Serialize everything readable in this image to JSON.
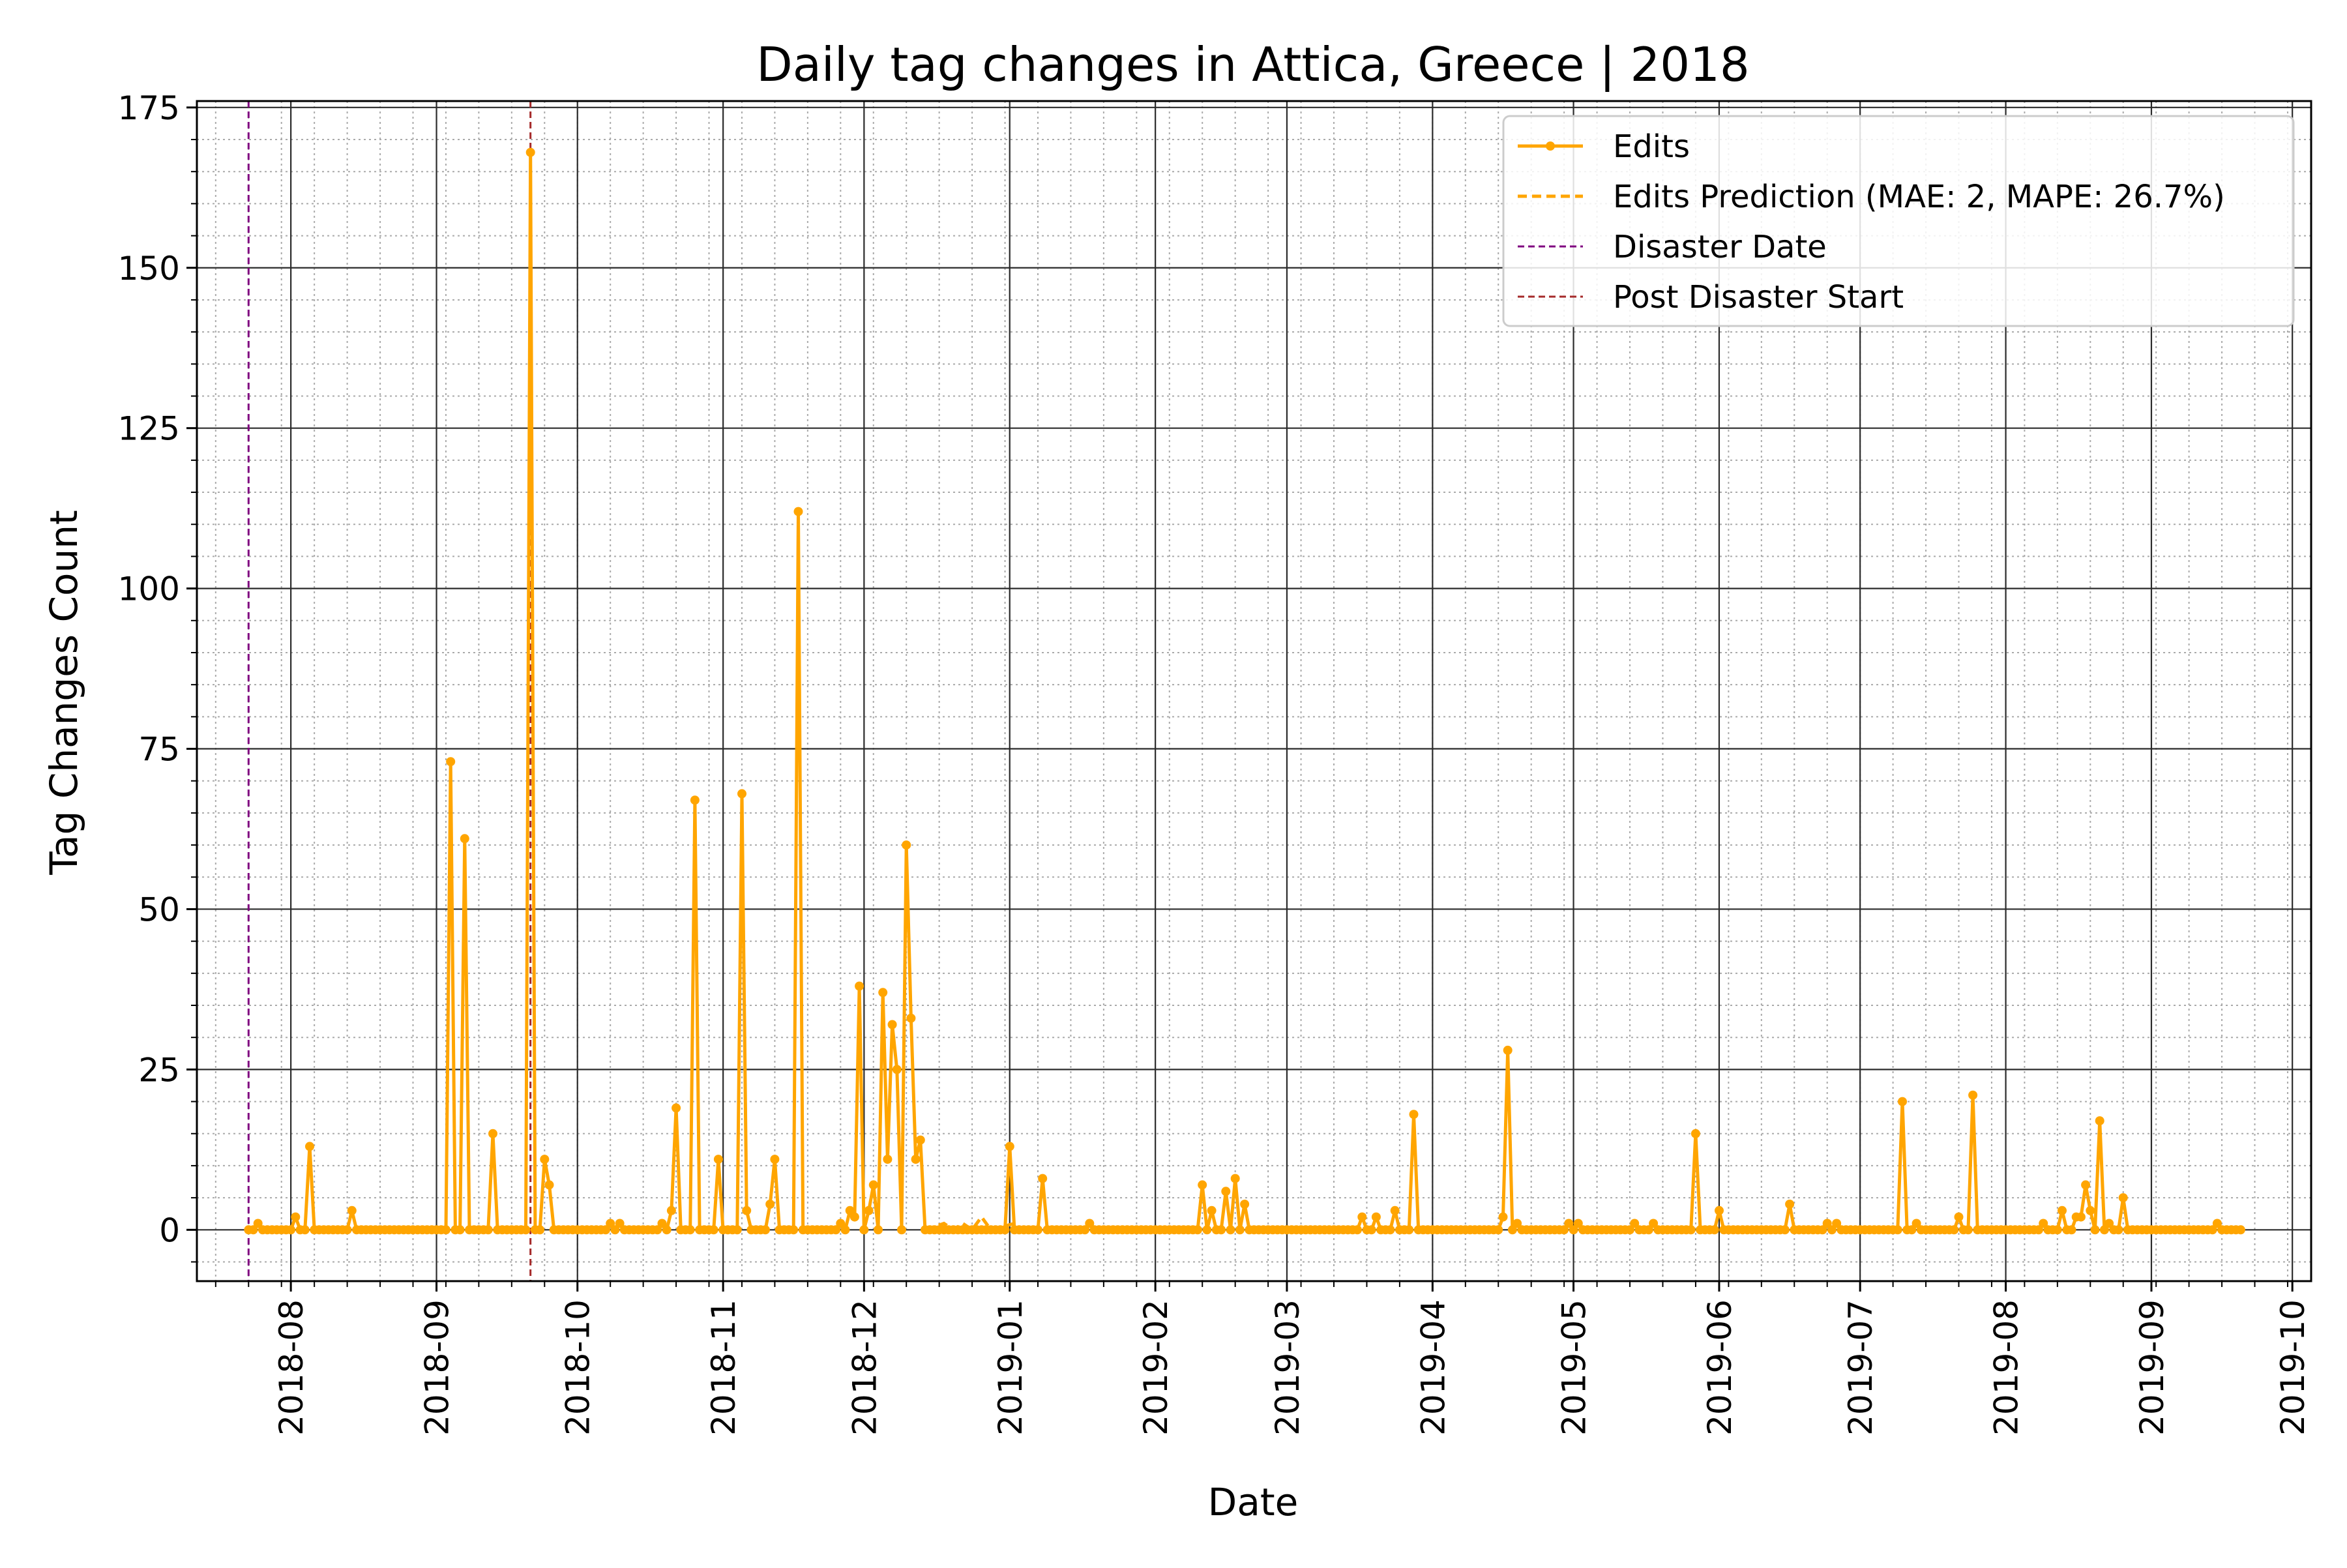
{
  "chart_data": {
    "type": "line",
    "title": "Daily tag changes in Attica, Greece | 2018",
    "xlabel": "Date",
    "ylabel": "Tag Changes Count",
    "xlim": [
      "2018-07-12",
      "2019-10-05"
    ],
    "ylim": [
      -8,
      176
    ],
    "x_ticks": [
      "2018-08",
      "2018-09",
      "2018-10",
      "2018-11",
      "2018-12",
      "2019-01",
      "2019-02",
      "2019-03",
      "2019-04",
      "2019-05",
      "2019-06",
      "2019-07",
      "2019-08",
      "2019-09",
      "2019-10"
    ],
    "y_ticks": [
      "0",
      "25",
      "50",
      "75",
      "100",
      "125",
      "150",
      "175"
    ],
    "y_tick_values": [
      0,
      25,
      50,
      75,
      100,
      125,
      150,
      175
    ],
    "grid": {
      "major": true,
      "minor": true
    },
    "legend_position": "top-right",
    "series": [
      {
        "name": "Edits",
        "color": "#FFA500",
        "marker": "circle",
        "start": "2018-07-23",
        "end": "2019-09-20",
        "baseline": 0,
        "points": [
          [
            "2018-07-23",
            0
          ],
          [
            "2018-07-25",
            1
          ],
          [
            "2018-08-02",
            2
          ],
          [
            "2018-08-05",
            13
          ],
          [
            "2018-08-14",
            3
          ],
          [
            "2018-09-04",
            73
          ],
          [
            "2018-09-07",
            61
          ],
          [
            "2018-09-13",
            15
          ],
          [
            "2018-09-21",
            168
          ],
          [
            "2018-09-24",
            11
          ],
          [
            "2018-09-25",
            7
          ],
          [
            "2018-10-08",
            1
          ],
          [
            "2018-10-10",
            1
          ],
          [
            "2018-10-19",
            1
          ],
          [
            "2018-10-21",
            3
          ],
          [
            "2018-10-22",
            19
          ],
          [
            "2018-10-26",
            67
          ],
          [
            "2018-10-31",
            11
          ],
          [
            "2018-11-05",
            68
          ],
          [
            "2018-11-06",
            3
          ],
          [
            "2018-11-11",
            4
          ],
          [
            "2018-11-12",
            11
          ],
          [
            "2018-11-17",
            112
          ],
          [
            "2018-11-26",
            1
          ],
          [
            "2018-11-28",
            3
          ],
          [
            "2018-11-29",
            2
          ],
          [
            "2018-11-30",
            38
          ],
          [
            "2018-12-02",
            3
          ],
          [
            "2018-12-03",
            7
          ],
          [
            "2018-12-05",
            37
          ],
          [
            "2018-12-06",
            11
          ],
          [
            "2018-12-07",
            32
          ],
          [
            "2018-12-08",
            25
          ],
          [
            "2018-12-10",
            60
          ],
          [
            "2018-12-11",
            33
          ],
          [
            "2018-12-12",
            11
          ],
          [
            "2018-12-13",
            14
          ],
          [
            "2019-01-01",
            13
          ],
          [
            "2019-01-08",
            8
          ],
          [
            "2019-01-18",
            1
          ],
          [
            "2019-02-11",
            7
          ],
          [
            "2019-02-13",
            3
          ],
          [
            "2019-02-16",
            6
          ],
          [
            "2019-02-18",
            8
          ],
          [
            "2019-02-20",
            4
          ],
          [
            "2019-03-17",
            2
          ],
          [
            "2019-03-20",
            2
          ],
          [
            "2019-03-24",
            3
          ],
          [
            "2019-03-28",
            18
          ],
          [
            "2019-04-16",
            2
          ],
          [
            "2019-04-17",
            28
          ],
          [
            "2019-04-19",
            1
          ],
          [
            "2019-04-30",
            1
          ],
          [
            "2019-05-02",
            1
          ],
          [
            "2019-05-14",
            1
          ],
          [
            "2019-05-18",
            1
          ],
          [
            "2019-05-27",
            15
          ],
          [
            "2019-06-01",
            3
          ],
          [
            "2019-06-16",
            4
          ],
          [
            "2019-06-24",
            1
          ],
          [
            "2019-06-26",
            1
          ],
          [
            "2019-07-10",
            20
          ],
          [
            "2019-07-13",
            1
          ],
          [
            "2019-07-22",
            2
          ],
          [
            "2019-07-25",
            21
          ],
          [
            "2019-08-09",
            1
          ],
          [
            "2019-08-13",
            3
          ],
          [
            "2019-08-16",
            2
          ],
          [
            "2019-08-17",
            2
          ],
          [
            "2019-08-18",
            7
          ],
          [
            "2019-08-19",
            3
          ],
          [
            "2019-08-21",
            17
          ],
          [
            "2019-08-23",
            1
          ],
          [
            "2019-08-26",
            5
          ],
          [
            "2019-09-15",
            1
          ]
        ]
      },
      {
        "name": "Edits Prediction (MAE: 2, MAPE: 26.7%)",
        "color": "#FFA500",
        "dashed": true,
        "points": [
          [
            "2018-12-14",
            0
          ],
          [
            "2018-12-18",
            1
          ],
          [
            "2018-12-20",
            0
          ],
          [
            "2018-12-22",
            1
          ],
          [
            "2018-12-24",
            0
          ],
          [
            "2018-12-26",
            2
          ],
          [
            "2018-12-28",
            0
          ],
          [
            "2019-01-02",
            1
          ],
          [
            "2019-01-03",
            0
          ]
        ]
      }
    ],
    "vlines": [
      {
        "name": "Disaster Date",
        "date": "2018-07-23",
        "color": "#800080"
      },
      {
        "name": "Post Disaster Start",
        "date": "2018-09-21",
        "color": "#A52A2A"
      }
    ]
  }
}
